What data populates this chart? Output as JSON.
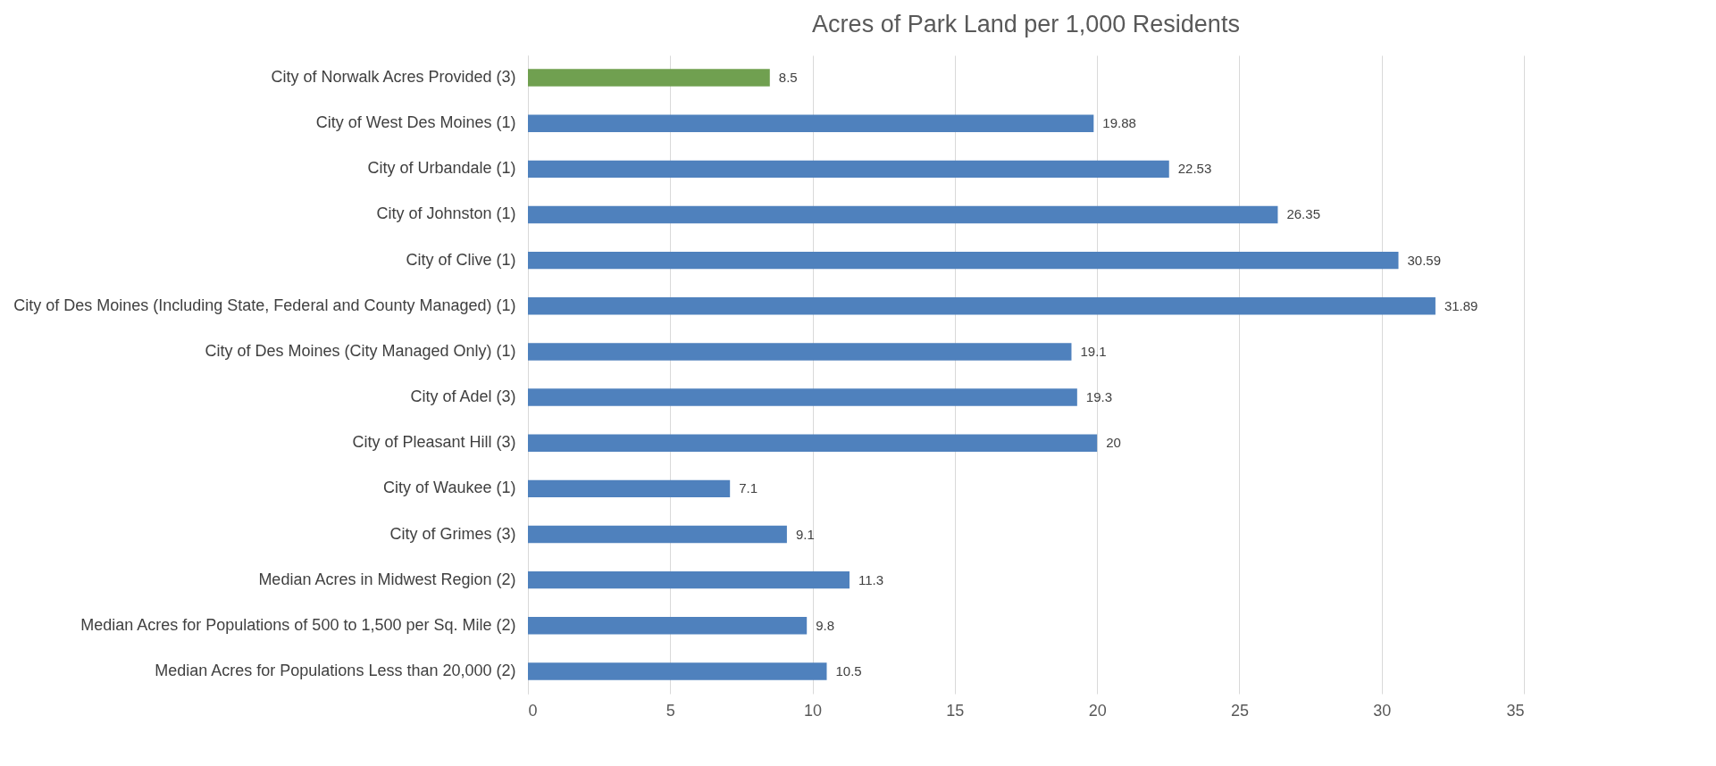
{
  "chart_data": {
    "type": "bar",
    "orientation": "horizontal",
    "title": "Acres of Park Land per 1,000 Residents",
    "categories": [
      "City of Norwalk Acres Provided (3)",
      "City of West Des Moines (1)",
      "City of Urbandale (1)",
      "City of Johnston (1)",
      "City of Clive (1)",
      "City of Des Moines (Including State, Federal and County Managed) (1)",
      "City of Des Moines (City Managed Only) (1)",
      "City of Adel (3)",
      "City of Pleasant Hill (3)",
      "City of Waukee (1)",
      "City of Grimes (3)",
      "Median Acres in Midwest Region (2)",
      "Median Acres for Populations of 500 to 1,500 per Sq. Mile (2)",
      "Median Acres for Populations Less than 20,000 (2)"
    ],
    "values": [
      8.5,
      19.88,
      22.53,
      26.35,
      30.59,
      31.89,
      19.1,
      19.3,
      20,
      7.1,
      9.1,
      11.3,
      9.8,
      10.5
    ],
    "colors": [
      "#70a050",
      "#4f81bd",
      "#4f81bd",
      "#4f81bd",
      "#4f81bd",
      "#4f81bd",
      "#4f81bd",
      "#4f81bd",
      "#4f81bd",
      "#4f81bd",
      "#4f81bd",
      "#4f81bd",
      "#4f81bd",
      "#4f81bd"
    ],
    "xlim": [
      0,
      35
    ],
    "xticks": [
      0,
      5,
      10,
      15,
      20,
      25,
      30,
      35
    ],
    "grid": "x",
    "data_labels": true
  }
}
